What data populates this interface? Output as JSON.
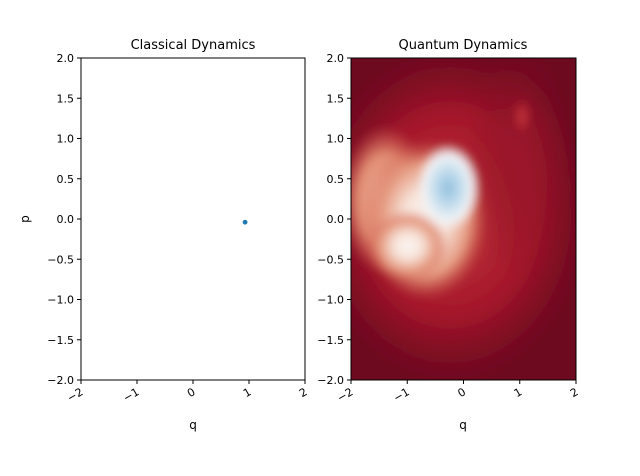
{
  "chart_data": [
    {
      "type": "scatter",
      "title": "Classical Dynamics",
      "xlabel": "q",
      "ylabel": "p",
      "xlim": [
        -2,
        2
      ],
      "ylim": [
        -2,
        2
      ],
      "x_ticks": [
        "−2",
        "−1",
        "0",
        "1",
        "2"
      ],
      "y_ticks": [
        "−2.0",
        "−1.5",
        "−1.0",
        "−0.5",
        "0.0",
        "0.5",
        "1.0",
        "1.5",
        "2.0"
      ],
      "x_tick_values": [
        -2,
        -1,
        0,
        1,
        2
      ],
      "y_tick_values": [
        -2.0,
        -1.5,
        -1.0,
        -0.5,
        0.0,
        0.5,
        1.0,
        1.5,
        2.0
      ],
      "points": [
        {
          "x": 0.93,
          "y": -0.04
        }
      ],
      "marker_color": "#1f77b4",
      "grid": false
    },
    {
      "type": "heatmap",
      "title": "Quantum Dynamics",
      "xlabel": "q",
      "ylabel": "",
      "xlim": [
        -2,
        2
      ],
      "ylim": [
        -2,
        2
      ],
      "x_ticks": [
        "−2",
        "−1",
        "0",
        "1",
        "2"
      ],
      "y_ticks": [
        "−2.0",
        "−1.5",
        "−1.0",
        "−0.5",
        "0.0",
        "0.5",
        "1.0",
        "1.5",
        "2.0"
      ],
      "x_tick_values": [
        -2,
        -1,
        0,
        1,
        2
      ],
      "y_tick_values": [
        -2.0,
        -1.5,
        -1.0,
        -0.5,
        0.0,
        0.5,
        1.0,
        1.5,
        2.0
      ],
      "colormap": "RdBu",
      "features": [
        {
          "q": -0.9,
          "p": -0.35,
          "level": "white-pale"
        },
        {
          "q": -0.2,
          "p": 0.35,
          "level": "blue-peak"
        },
        {
          "q": -1.05,
          "p": 0.3,
          "level": "light-red"
        },
        {
          "q": 1.05,
          "p": 1.25,
          "level": "medium-red"
        }
      ],
      "grid": false
    }
  ]
}
